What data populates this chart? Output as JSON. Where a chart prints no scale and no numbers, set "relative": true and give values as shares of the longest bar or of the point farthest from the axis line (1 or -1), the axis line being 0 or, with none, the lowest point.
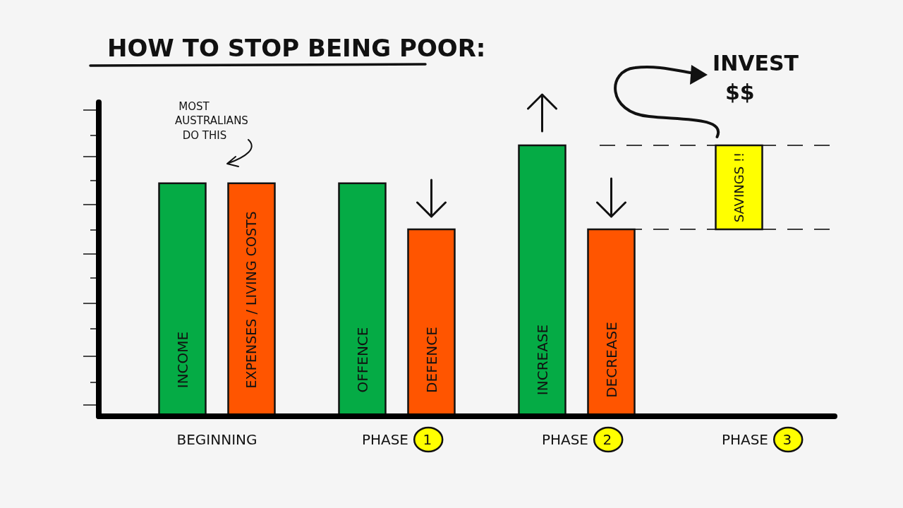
{
  "chart_data": {
    "type": "bar",
    "title": "HOW TO STOP BEING POOR:",
    "relative": true,
    "categories": [
      "BEGINNING",
      "PHASE 1",
      "PHASE 2",
      "PHASE 3"
    ],
    "series": [
      {
        "color": "#05ab45",
        "values": [
          0.86,
          0.86,
          1,
          null
        ]
      },
      {
        "color": "#ff5500",
        "values": [
          0.86,
          0.69,
          0.69,
          null
        ]
      }
    ],
    "bands": [
      {
        "axis": "y",
        "from": 0.69,
        "to": 1,
        "label": "SAVINGS !!",
        "color": "#ffff00"
      }
    ],
    "annotations": [
      "INCOME",
      "EXPENSES / LIVING COSTS",
      "OFFENCE",
      "DEFENCE",
      "INCREASE",
      "DECREASE",
      "MOST\nAUSTRALIANS\nDO THIS",
      "INVEST\n$$"
    ],
    "ref_lines": [
      {
        "axis": "y",
        "value": 1,
        "color": "#000000",
        "line_style": "dashed"
      },
      {
        "axis": "y",
        "value": 0.69,
        "color": "#000000",
        "line_style": "dashed"
      }
    ],
    "grid": false
  }
}
